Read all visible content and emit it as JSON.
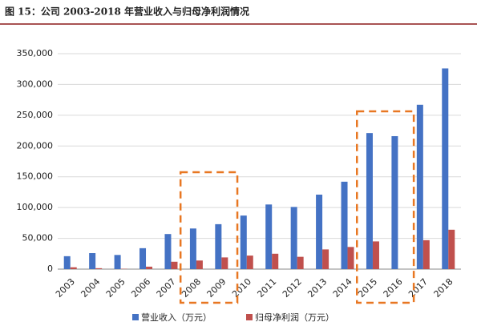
{
  "chart_data": {
    "type": "bar",
    "title": "图 15：公司 2003-2018 年营业收入与归母净利润情况",
    "categories": [
      "2003",
      "2004",
      "2005",
      "2006",
      "2007",
      "2008",
      "2009",
      "2010",
      "2011",
      "2012",
      "2013",
      "2014",
      "2015",
      "2016",
      "2017",
      "2018"
    ],
    "series": [
      {
        "name": "营业收入（万元）",
        "color": "#4472c4",
        "values": [
          21000,
          26000,
          23000,
          34000,
          57000,
          66000,
          73000,
          87000,
          105000,
          101000,
          121000,
          142000,
          221000,
          216000,
          267000,
          326000
        ]
      },
      {
        "name": "归母净利润（万元）",
        "color": "#c0504d",
        "values": [
          3000,
          1500,
          500,
          4000,
          12000,
          14000,
          19000,
          22000,
          25000,
          20000,
          32000,
          36000,
          45000,
          0,
          47000,
          64000
        ]
      }
    ],
    "ylim": [
      0,
      350000
    ],
    "yticks": [
      0,
      {
        "value": 50000,
        "label": "50,000"
      },
      {
        "value": 100000,
        "label": "100,000"
      },
      {
        "value": 150000,
        "label": "150,000"
      },
      {
        "value": 200000,
        "label": "200,000"
      },
      {
        "value": 250000,
        "label": "250,000"
      },
      {
        "value": 300000,
        "label": "300,000"
      },
      {
        "value": 350000,
        "label": "350,000"
      }
    ],
    "grid": true,
    "legend": "bottom"
  }
}
